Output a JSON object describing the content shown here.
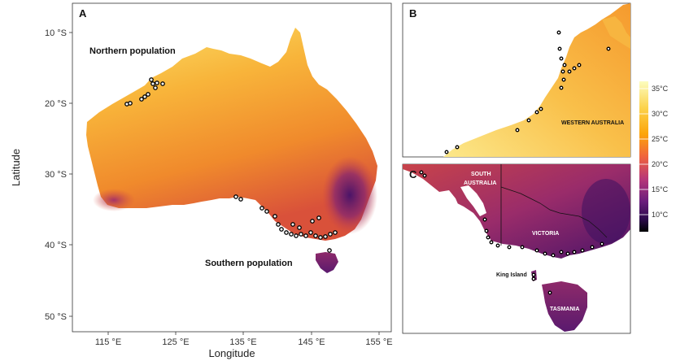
{
  "panels": {
    "a": {
      "letter": "A"
    },
    "b": {
      "letter": "B"
    },
    "c": {
      "letter": "C"
    }
  },
  "axes": {
    "xlabel": "Longitude",
    "ylabel": "Latitude",
    "x_ticks": [
      "115 °E",
      "125 °E",
      "135 °E",
      "145 °E",
      "155 °E"
    ],
    "y_ticks": [
      "10 °S",
      "20 °S",
      "30 °S",
      "40 °S",
      "50 °S"
    ]
  },
  "map_labels": {
    "northern_population": "Northern population",
    "southern_population": "Southern population",
    "western_australia": "WESTERN AUSTRALIA",
    "south_australia_line1": "SOUTH",
    "south_australia_line2": "AUSTRALIA",
    "victoria": "VICTORIA",
    "king_island": "King Island",
    "tasmania": "TASMANIA"
  },
  "legend": {
    "labels": [
      "35°C",
      "30°C",
      "25°C",
      "20°C",
      "15°C",
      "10°C"
    ],
    "colors": [
      "#fcfdbf",
      "#fca50a",
      "#f0643c",
      "#b73779",
      "#6a1d7c",
      "#2a0a4a",
      "#000004"
    ]
  },
  "colors": {
    "hot": "#f7d24a",
    "warm": "#f59b2a",
    "mid": "#dd5a3c",
    "cool": "#9a2c6a",
    "cold": "#3d1060"
  }
}
